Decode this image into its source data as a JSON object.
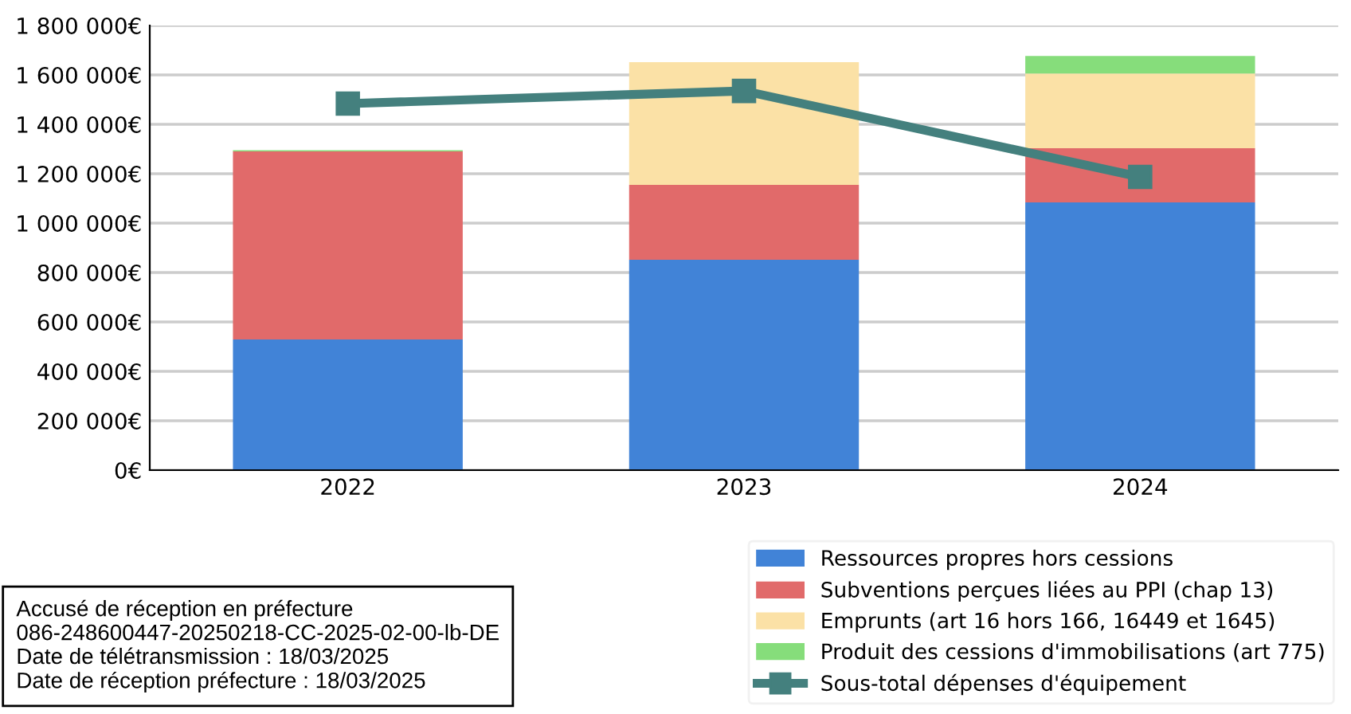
{
  "chart_data": {
    "type": "bar",
    "stacked": true,
    "categories": [
      "2022",
      "2023",
      "2024"
    ],
    "series": [
      {
        "name": "Ressources propres hors cessions",
        "color": "#4183d7",
        "values": [
          529000,
          852000,
          1084000
        ]
      },
      {
        "name": "Subventions perçues liées au PPI (chap 13)",
        "color": "#e16a6a",
        "values": [
          761000,
          303000,
          219000
        ]
      },
      {
        "name": "Emprunts (art 16 hors 166, 16449 et 1645)",
        "color": "#fbe1a6",
        "values": [
          0,
          497000,
          303000
        ]
      },
      {
        "name": "Produit des cessions d'immobilisations (art 775)",
        "color": "#86dd7b",
        "values": [
          5000,
          0,
          71000
        ]
      },
      {
        "name": "Sous-total dépenses d'équipement",
        "color": "#44807e",
        "type": "line",
        "marker": "square",
        "values": [
          1484000,
          1535000,
          1187000
        ]
      }
    ],
    "ylim": [
      0,
      1800000
    ],
    "yticks": [
      {
        "value": 0,
        "label": "0€"
      },
      {
        "value": 200000,
        "label": "200 000€"
      },
      {
        "value": 400000,
        "label": "400 000€"
      },
      {
        "value": 600000,
        "label": "600 000€"
      },
      {
        "value": 800000,
        "label": "800 000€"
      },
      {
        "value": 1000000,
        "label": "1 000 000€"
      },
      {
        "value": 1200000,
        "label": "1 200 000€"
      },
      {
        "value": 1400000,
        "label": "1 400 000€"
      },
      {
        "value": 1600000,
        "label": "1 600 000€"
      },
      {
        "value": 1800000,
        "label": "1 800 000€"
      }
    ],
    "grid": "y",
    "legend": "bottom",
    "annotations": [
      "Accusé de réception en préfecture",
      "086-248600447-20250218-CC-2025-02-00-lb-DE",
      "Date de télétransmission : 18/03/2025",
      "Date de réception préfecture : 18/03/2025"
    ]
  }
}
